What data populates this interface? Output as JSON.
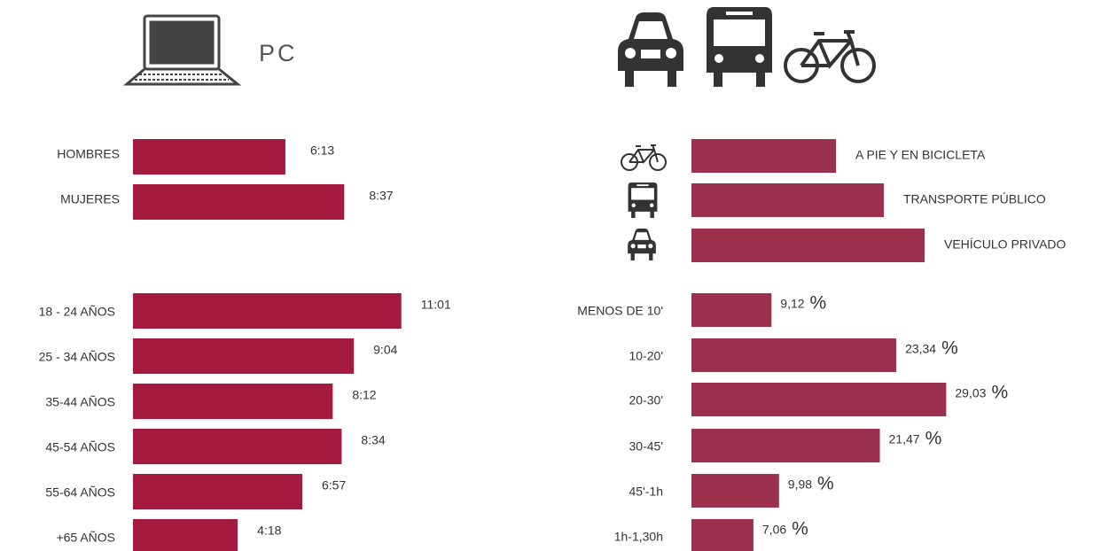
{
  "header": {
    "title": "PC"
  },
  "chart_data": [
    {
      "type": "bar",
      "categories": [
        "HOMBRES",
        "MUJERES"
      ],
      "values": [
        373,
        517
      ],
      "value_labels": [
        "6:13",
        "8:37"
      ],
      "color": "#a51a3f"
    },
    {
      "type": "bar",
      "categories": [
        "18 - 24 AÑOS",
        "25 - 34 AÑOS",
        "35-44 AÑOS",
        "45-54 AÑOS",
        "55-64 AÑOS",
        "+65 AÑOS"
      ],
      "values": [
        661,
        544,
        492,
        514,
        417,
        258
      ],
      "value_labels": [
        "11:01",
        "9:04",
        "8:12",
        "8:34",
        "6:57",
        "4:18"
      ],
      "color": "#a51a3f"
    },
    {
      "type": "bar",
      "categories": [
        "A PIE Y EN BICICLETA",
        "TRANSPORTE PÚBLICO",
        "VEHÍCULO PRIVADO"
      ],
      "values": [
        16.3,
        21.7,
        26.3
      ],
      "color": "#9b314f"
    },
    {
      "type": "bar",
      "categories": [
        "MENOS DE 10'",
        "10-20'",
        "20-30'",
        "30-45'",
        "45'-1h",
        "1h-1,30h"
      ],
      "values": [
        9.12,
        23.34,
        29.03,
        21.47,
        9.98,
        7.06
      ],
      "value_labels": [
        "9,12",
        "23,34",
        "29,03",
        "21,47",
        "9,98",
        "7,06"
      ],
      "unit": "%",
      "color": "#9b314f"
    }
  ]
}
